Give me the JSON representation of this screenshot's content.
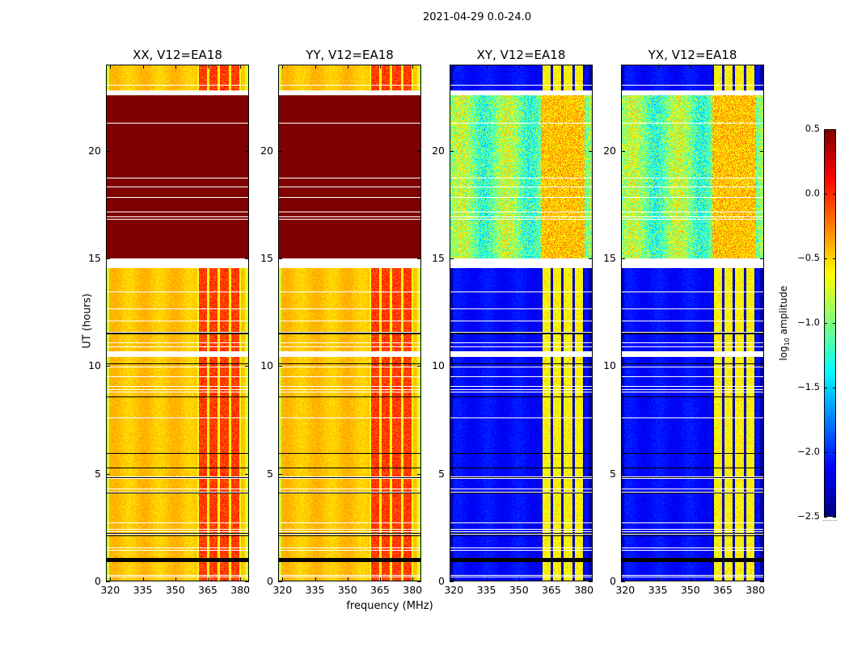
{
  "figure": {
    "suptitle": "2021-04-29 0.0-24.0",
    "xlabel": "frequency (MHz)",
    "ylabel": "UT (hours)"
  },
  "chart_data": {
    "type": "heatmap",
    "title": "2021-04-29 0.0-24.0",
    "xlabel": "frequency (MHz)",
    "ylabel": "UT (hours)",
    "xlim": [
      318,
      384
    ],
    "ylim": [
      0,
      24
    ],
    "xticks": [
      "320",
      "335",
      "350",
      "365",
      "380"
    ],
    "yticks": [
      "0",
      "5",
      "10",
      "15",
      "20"
    ],
    "colormap": "jet",
    "colorbar": {
      "label": "log10 amplitude",
      "label_main": "log",
      "label_sub": "10",
      "label_rest": " amplitude",
      "range": [
        -2.5,
        0.5
      ],
      "ticks": [
        "0.5",
        "0.0",
        "−0.5",
        "−1.0",
        "−1.5",
        "−2.0",
        "−2.5"
      ],
      "tick_values": [
        0.5,
        0.0,
        -0.5,
        -1.0,
        -1.5,
        -2.0,
        -2.5
      ]
    },
    "panels": [
      {
        "name": "XX",
        "title": "XX, V12=EA18",
        "base_level": -0.45,
        "rfi_level": -0.05,
        "high_block_level": 0.5
      },
      {
        "name": "YY",
        "title": "YY, V12=EA18",
        "base_level": -0.45,
        "rfi_level": -0.05,
        "high_block_level": 0.5
      },
      {
        "name": "XY",
        "title": "XY, V12=EA18",
        "base_level": -2.1,
        "rfi_level": -0.6,
        "high_block_level": -1.0
      },
      {
        "name": "YX",
        "title": "YX, V12=EA18",
        "base_level": -2.1,
        "rfi_level": -0.6,
        "high_block_level": -1.0
      }
    ],
    "rfi_band_MHz": [
      360,
      380
    ],
    "high_amplitude_interval_UT": [
      15.0,
      22.6
    ],
    "flagged_gaps_UT": [
      [
        14.6,
        15.0
      ],
      [
        10.5,
        10.7
      ],
      [
        22.6,
        22.8
      ]
    ]
  }
}
